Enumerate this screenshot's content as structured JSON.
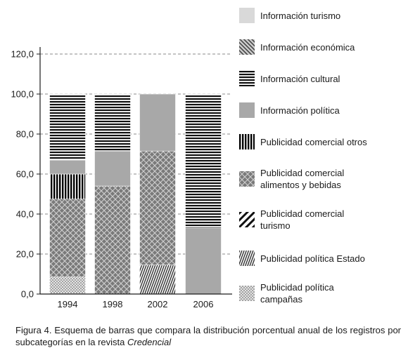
{
  "chart_data": {
    "type": "bar",
    "stacked": true,
    "categories": [
      "1994",
      "1998",
      "2002",
      "2006"
    ],
    "ylim": [
      0,
      120
    ],
    "yticks": [
      "0,0",
      "20,0",
      "40,0",
      "60,0",
      "80,0",
      "100,0",
      "120,0"
    ],
    "ytick_values": [
      0,
      20,
      40,
      60,
      80,
      100,
      120
    ],
    "grid": true,
    "legend_position": "right",
    "series": [
      {
        "name": "Publicidad política campañas",
        "pattern": "dots",
        "values": [
          8.5,
          0,
          0,
          0
        ]
      },
      {
        "name": "Publicidad política Estado",
        "pattern": "vertical-thin",
        "values": [
          0,
          0,
          14.5,
          0
        ]
      },
      {
        "name": "Publicidad comercial turismo",
        "pattern": "diagonal-bold",
        "values": [
          0,
          0,
          0,
          0
        ]
      },
      {
        "name": "Publicidad comercial alimentos y bebidas",
        "pattern": "crosshatch",
        "values": [
          39,
          54,
          57,
          0
        ]
      },
      {
        "name": "Publicidad comercial otros",
        "pattern": "vertical-bold",
        "values": [
          12.5,
          0,
          0,
          0
        ]
      },
      {
        "name": "Información política",
        "pattern": "solid-gray",
        "values": [
          7,
          17.5,
          28.5,
          33
        ]
      },
      {
        "name": "Información cultural",
        "pattern": "horizontal-stripes",
        "values": [
          33,
          28.5,
          0,
          67
        ]
      },
      {
        "name": "Información económica",
        "pattern": "diagonal-fine",
        "values": [
          0,
          0,
          0,
          0
        ]
      },
      {
        "name": "Información turismo",
        "pattern": "light-gray",
        "values": [
          0,
          0,
          0,
          0
        ]
      }
    ],
    "legend_order": [
      "Información turismo",
      "Información económica",
      "Información cultural",
      "Información política",
      "Publicidad comercial otros",
      "Publicidad comercial alimentos y bebidas",
      "Publicidad comercial turismo",
      "Publicidad política Estado",
      "Publicidad política campañas"
    ],
    "legend_lines": [
      [
        "Información turismo"
      ],
      [
        "Información económica"
      ],
      [
        "Información cultural"
      ],
      [
        "Información política"
      ],
      [
        "Publicidad comercial otros"
      ],
      [
        "Publicidad comercial",
        "alimentos y bebidas"
      ],
      [
        "Publicidad comercial",
        "turismo"
      ],
      [
        "Publicidad política Estado"
      ],
      [
        "Publicidad política",
        "campañas"
      ]
    ]
  },
  "caption": {
    "text": "Figura 4. Esquema de barras que compara la distribución porcentual anual de los registros por subcategorías en la revista ",
    "italic": "Credencial"
  },
  "colors": {
    "axis": "#1a1a1a",
    "grid": "#888888",
    "solid_gray": "#a8a8a8",
    "light_gray": "#d9d9d9",
    "crosshatch_bg": "#7a7a7a",
    "stripe": "#111111"
  }
}
